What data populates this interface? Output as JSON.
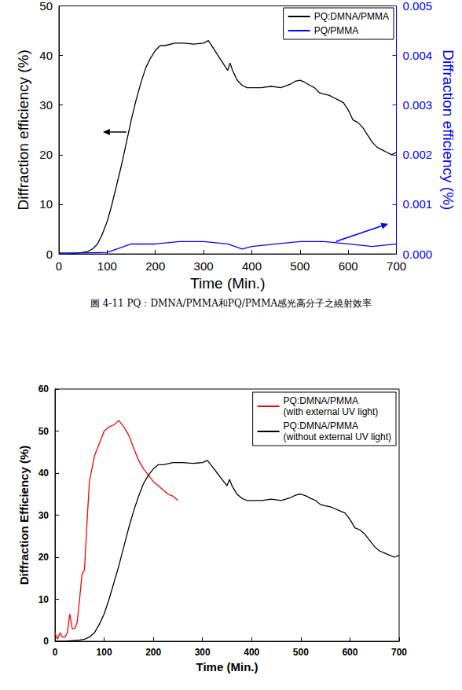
{
  "caption": "圖 4-11  PQ：DMNA/PMMA和PQ/PMMA感光高分子之繞射效率",
  "chart_data": [
    {
      "type": "line",
      "x_label": "Time (Min.)",
      "y_label": "Diffraction efficiency (%)",
      "y2_label": "Diffraction efficiency (%)",
      "xlim": [
        0,
        700
      ],
      "xticks": [
        0,
        100,
        200,
        300,
        400,
        500,
        600,
        700
      ],
      "ylim": [
        0,
        50
      ],
      "yticks": [
        0,
        10,
        20,
        30,
        40,
        50
      ],
      "y2lim": [
        0,
        0.005
      ],
      "y2ticks": [
        {
          "value": 0,
          "label": "0.000"
        },
        {
          "value": 0.001,
          "label": "0.001"
        },
        {
          "value": 0.002,
          "label": "0.002"
        },
        {
          "value": 0.003,
          "label": "0.003"
        },
        {
          "value": 0.004,
          "label": "0.004"
        },
        {
          "value": 0.005,
          "label": "0.005"
        }
      ],
      "legend": "upper right",
      "grid": false,
      "series": [
        {
          "name": "PQ:DMNA/PMMA",
          "color": "#000000",
          "x": [
            0,
            20,
            40,
            50,
            60,
            70,
            80,
            90,
            100,
            110,
            120,
            130,
            140,
            150,
            160,
            170,
            180,
            190,
            200,
            210,
            220,
            240,
            260,
            280,
            300,
            310,
            320,
            330,
            340,
            350,
            355,
            360,
            365,
            370,
            380,
            390,
            400,
            420,
            440,
            460,
            480,
            490,
            500,
            510,
            520,
            530,
            540,
            550,
            560,
            570,
            580,
            590,
            600,
            610,
            620,
            630,
            640,
            650,
            660,
            670,
            680,
            690,
            700
          ],
          "values": [
            0,
            0,
            0.2,
            0.3,
            0.5,
            1,
            2,
            4,
            6.5,
            10,
            14,
            18,
            22.5,
            27,
            31,
            34.5,
            37.5,
            39.5,
            41,
            42,
            42,
            42.5,
            42.5,
            42.3,
            42.5,
            43,
            41.5,
            40,
            38.5,
            37,
            38.5,
            37,
            36,
            35,
            34,
            33.5,
            33.5,
            33.5,
            33.8,
            33.5,
            34.2,
            34.8,
            35,
            34.6,
            34,
            33.5,
            32.5,
            32.2,
            32,
            31.5,
            31,
            30.5,
            29,
            27,
            26.5,
            25.5,
            24,
            22.5,
            21.5,
            21,
            20.5,
            20,
            20.5
          ]
        },
        {
          "name": "PQ/PMMA",
          "color": "#0000ff",
          "axis": "y2",
          "x": [
            0,
            50,
            100,
            120,
            150,
            200,
            250,
            300,
            350,
            380,
            400,
            450,
            500,
            550,
            600,
            650,
            700
          ],
          "values": [
            2e-05,
            2e-05,
            3e-05,
            0.0001,
            0.0002,
            0.0002,
            0.00025,
            0.00025,
            0.0002,
            0.0001,
            0.00015,
            0.0002,
            0.00025,
            0.00025,
            0.0002,
            0.00015,
            0.0002
          ]
        }
      ]
    },
    {
      "type": "line",
      "x_label": "Time (Min.)",
      "y_label": "Diffraction Efficiency (%)",
      "xlim": [
        0,
        700
      ],
      "xticks": [
        0,
        100,
        200,
        300,
        400,
        500,
        600,
        700
      ],
      "ylim": [
        0,
        60
      ],
      "yticks": [
        0,
        10,
        20,
        30,
        40,
        50,
        60
      ],
      "legend": "upper right",
      "grid": false,
      "series": [
        {
          "name": "PQ:DMNA/PMMA\n(with external UV light)",
          "color": "#ff0000",
          "x": [
            0,
            5,
            10,
            15,
            20,
            25,
            30,
            35,
            40,
            45,
            50,
            55,
            60,
            65,
            70,
            75,
            80,
            90,
            100,
            110,
            120,
            130,
            140,
            150,
            160,
            170,
            180,
            190,
            200,
            210,
            220,
            230,
            240,
            250
          ],
          "values": [
            2,
            0.5,
            2,
            1,
            1,
            2,
            6.5,
            3,
            3,
            4.5,
            10,
            16,
            17,
            28,
            38,
            41,
            44,
            47,
            50,
            51,
            51.5,
            52.5,
            51,
            49,
            46,
            43,
            41,
            39.5,
            38,
            37,
            36,
            35,
            34.5,
            33.5
          ]
        },
        {
          "name": "PQ:DMNA/PMMA\n(without external UV light)",
          "color": "#000000",
          "x": [
            0,
            20,
            40,
            50,
            60,
            70,
            80,
            90,
            100,
            110,
            120,
            130,
            140,
            150,
            160,
            170,
            180,
            190,
            200,
            210,
            220,
            240,
            260,
            280,
            300,
            310,
            320,
            330,
            340,
            350,
            355,
            360,
            365,
            370,
            380,
            390,
            400,
            420,
            440,
            460,
            480,
            490,
            500,
            510,
            520,
            530,
            540,
            550,
            560,
            570,
            580,
            590,
            600,
            610,
            620,
            630,
            640,
            650,
            660,
            670,
            680,
            690,
            700
          ],
          "values": [
            0,
            0,
            0.2,
            0.3,
            0.5,
            1,
            2,
            4,
            6.5,
            10,
            14,
            18,
            22.5,
            27,
            31,
            34.5,
            37.5,
            39.5,
            41,
            42,
            42,
            42.5,
            42.5,
            42.3,
            42.5,
            43,
            41.5,
            40,
            38.5,
            37,
            38.5,
            37,
            36,
            35,
            34,
            33.5,
            33.5,
            33.5,
            33.8,
            33.5,
            34.2,
            34.8,
            35,
            34.6,
            34,
            33.5,
            32.5,
            32.2,
            32,
            31.5,
            31,
            30.5,
            29,
            27,
            26.5,
            25.5,
            24,
            22.5,
            21.5,
            21,
            20.5,
            20,
            20.5
          ]
        }
      ]
    }
  ]
}
